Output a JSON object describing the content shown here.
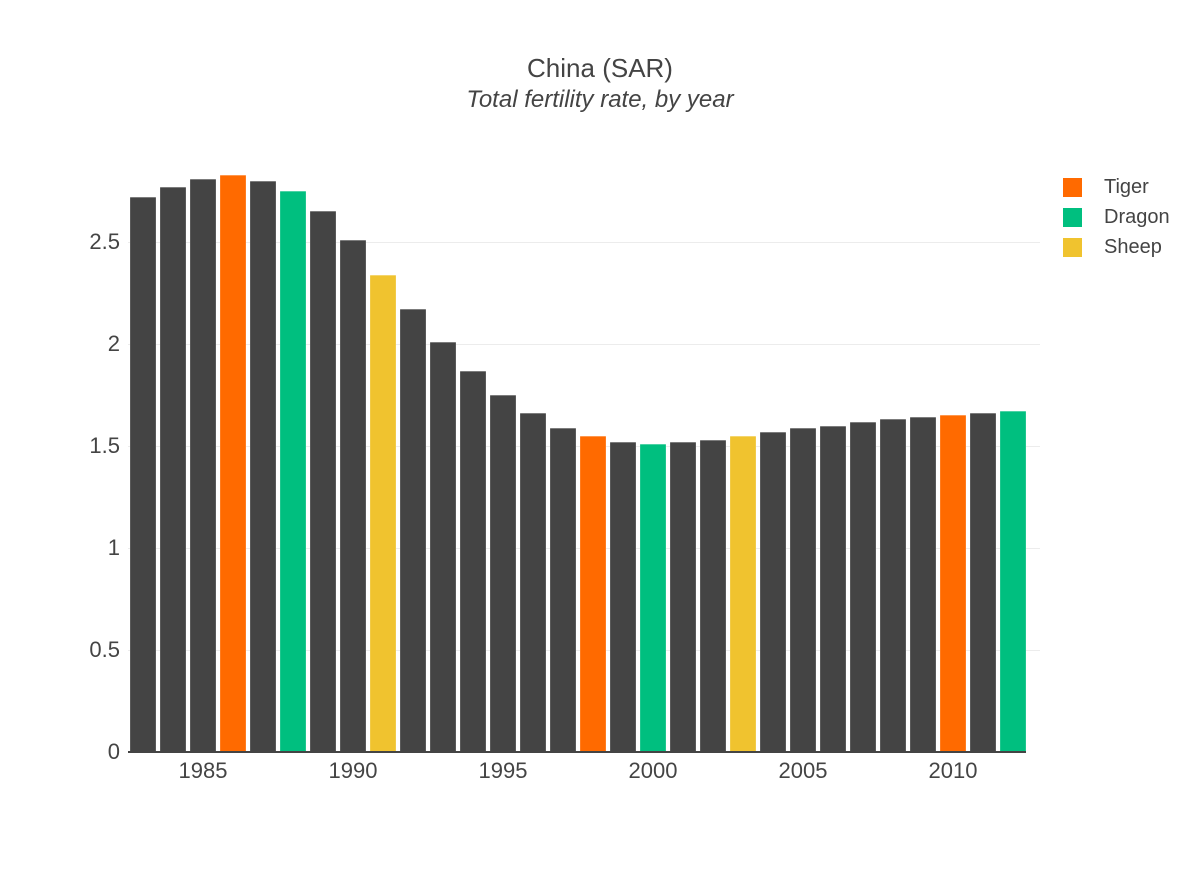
{
  "title": {
    "text": "China (SAR)",
    "subtitle": "Total fertility rate, by year",
    "color": "#444444"
  },
  "legend": {
    "items": [
      {
        "id": "tiger",
        "label": "Tiger",
        "color": "#ff6a00"
      },
      {
        "id": "dragon",
        "label": "Dragon",
        "color": "#00bf7f"
      },
      {
        "id": "sheep",
        "label": "Sheep",
        "color": "#f0c32f"
      }
    ]
  },
  "chart_data": {
    "type": "bar",
    "title": "China (SAR)",
    "subtitle": "Total fertility rate, by year",
    "xlabel": "",
    "ylabel": "",
    "x": [
      1983,
      1984,
      1985,
      1986,
      1987,
      1988,
      1989,
      1990,
      1991,
      1992,
      1993,
      1994,
      1995,
      1996,
      1997,
      1998,
      1999,
      2000,
      2001,
      2002,
      2003,
      2004,
      2005,
      2006,
      2007,
      2008,
      2009,
      2010,
      2011,
      2012
    ],
    "values": [
      2.72,
      2.77,
      2.81,
      2.83,
      2.8,
      2.75,
      2.65,
      2.51,
      2.34,
      2.17,
      2.01,
      1.87,
      1.75,
      1.66,
      1.59,
      1.55,
      1.52,
      1.51,
      1.52,
      1.53,
      1.55,
      1.57,
      1.59,
      1.6,
      1.62,
      1.63,
      1.64,
      1.65,
      1.66,
      1.67
    ],
    "bar_categories": [
      "default",
      "default",
      "default",
      "tiger",
      "default",
      "dragon",
      "default",
      "default",
      "sheep",
      "default",
      "default",
      "default",
      "default",
      "default",
      "default",
      "tiger",
      "default",
      "dragon",
      "default",
      "default",
      "sheep",
      "default",
      "default",
      "default",
      "default",
      "default",
      "default",
      "tiger",
      "default",
      "dragon"
    ],
    "colors": {
      "default": "#444444",
      "tiger": "#ff6a00",
      "dragon": "#00bf7f",
      "sheep": "#f0c32f"
    },
    "legend": [
      "Tiger",
      "Dragon",
      "Sheep"
    ],
    "legend_position": "right",
    "grid": true,
    "gridline_color": "#ececec",
    "axis_line_color": "#444444",
    "y_ticks": [
      0,
      0.5,
      1,
      1.5,
      2,
      2.5
    ],
    "x_ticks": [
      1985,
      1990,
      1995,
      2000,
      2005,
      2010
    ],
    "ylim": [
      0,
      2.95
    ]
  }
}
